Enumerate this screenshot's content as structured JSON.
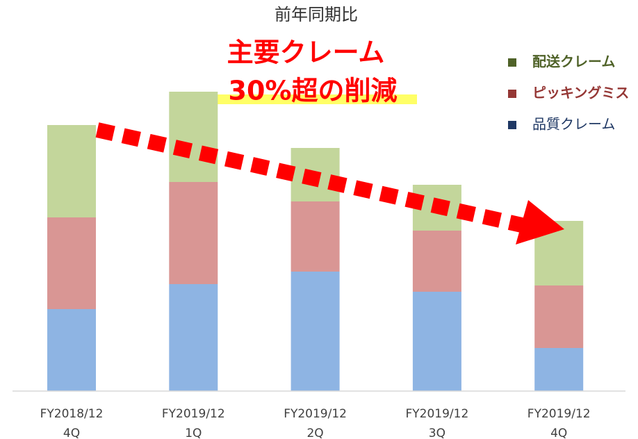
{
  "chart_data": {
    "type": "stacked_bar",
    "title": "前年同期比",
    "headline": [
      "主要クレーム",
      "30%超の削減"
    ],
    "categories": [
      [
        "FY2018/12",
        "4Q"
      ],
      [
        "FY2019/12",
        "1Q"
      ],
      [
        "FY2019/12",
        "2Q"
      ],
      [
        "FY2019/12",
        "3Q"
      ],
      [
        "FY2019/12",
        "4Q"
      ]
    ],
    "series": [
      {
        "name": "品質クレーム",
        "color": "#8eb4e3",
        "legend_color": "#1f3864",
        "values": [
          118,
          154,
          172,
          143,
          62
        ]
      },
      {
        "name": "ピッキングミス",
        "color": "#d99694",
        "legend_color": "#953735",
        "values": [
          132,
          147,
          101,
          88,
          90
        ]
      },
      {
        "name": "配送クレーム",
        "color": "#c3d69b",
        "legend_color": "#4f6228",
        "values": [
          133,
          130,
          77,
          66,
          93
        ]
      }
    ],
    "ylim": [
      0,
      440
    ],
    "legend": "top-right"
  }
}
